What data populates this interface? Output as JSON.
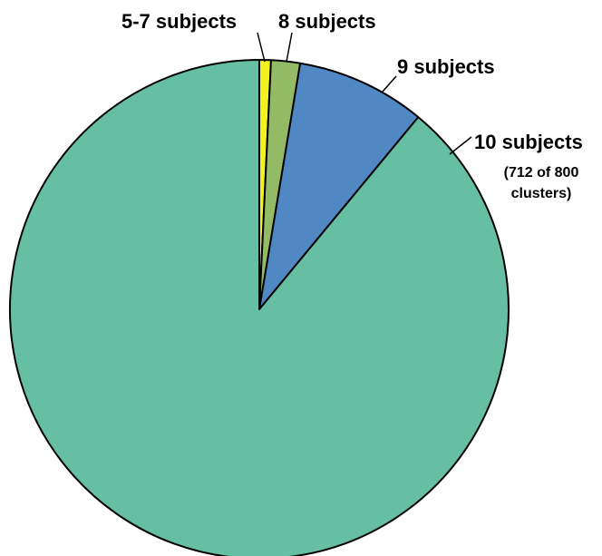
{
  "chart_data": {
    "type": "pie",
    "title": "",
    "labels": [
      "5-7 subjects",
      "8 subjects",
      "9 subjects",
      "10 subjects"
    ],
    "values": [
      6,
      15,
      67,
      712
    ],
    "total": 800,
    "colors": [
      "#f2f21e",
      "#93bb66",
      "#5088c4",
      "#66bfa3"
    ],
    "annotation": "(712 of 800 clusters)",
    "annotation_lines": [
      "(712 of 800",
      "clusters)"
    ],
    "start_angle_deg": 0,
    "direction": "clockwise"
  }
}
